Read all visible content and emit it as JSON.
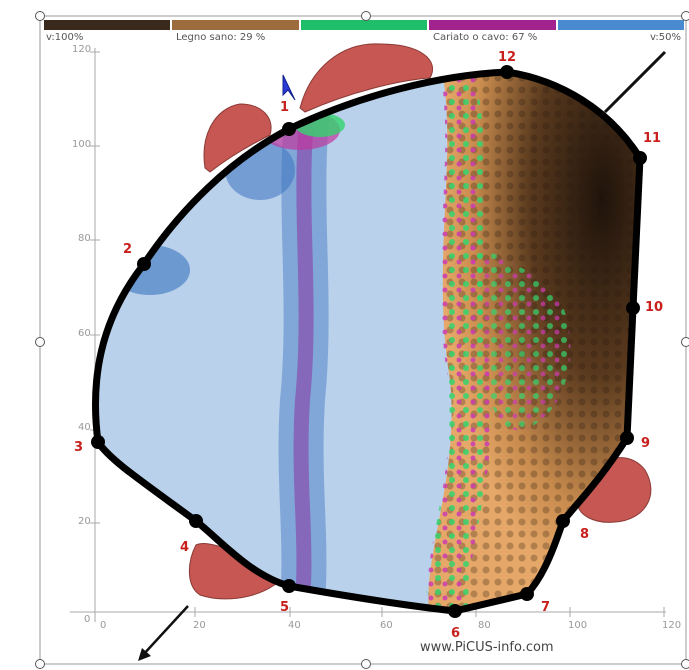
{
  "legend": {
    "colors": [
      "#3a2a1e",
      "#9c6b3e",
      "#1fbe6a",
      "#a3238e",
      "#4a8ad0"
    ],
    "left_label": "v:100%",
    "sound_wood_label": "Legno sano: 29 %",
    "decayed_label": "Cariato o cavo: 67 %",
    "right_label": "v:50%"
  },
  "axes": {
    "y_ticks": [
      "120",
      "100",
      "80",
      "60",
      "40",
      "20",
      "0"
    ],
    "x_ticks": [
      "0",
      "20",
      "40",
      "60",
      "80",
      "100",
      "120"
    ]
  },
  "sensors": [
    "1",
    "2",
    "3",
    "4",
    "5",
    "6",
    "7",
    "8",
    "9",
    "10",
    "11",
    "12"
  ],
  "watermark": "www.PiCUS-info.com",
  "icons": {
    "cursor": "cursor-arrow-icon"
  }
}
